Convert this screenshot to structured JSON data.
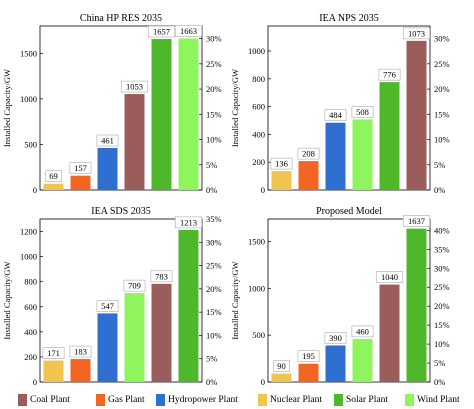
{
  "colors": {
    "Coal Plant": "#9b5c5c",
    "Gas Plant": "#f26522",
    "Hydropower Plant": "#2e6fd0",
    "Nuclear Plant": "#f1c451",
    "Solar Plant": "#4fb82a",
    "Wind Plant": "#8ef55c"
  },
  "legend": [
    {
      "label": "Coal Plant",
      "color": "#9b5c5c"
    },
    {
      "label": "Gas Plant",
      "color": "#f26522"
    },
    {
      "label": "Hydropower Plant",
      "color": "#2e6fd0"
    },
    {
      "label": "Nuclear Plant",
      "color": "#f1c451"
    },
    {
      "label": "Solar Plant",
      "color": "#4fb82a"
    },
    {
      "label": "Wind Plant",
      "color": "#8ef55c"
    }
  ],
  "chart_data": [
    {
      "type": "bar",
      "title": "China HP RES 2035",
      "ylabel": "Installed Capacity/GW",
      "ylim": [
        0,
        1800
      ],
      "yticks": [
        0,
        500,
        1000,
        1500
      ],
      "y2lim": [
        0,
        32.5
      ],
      "y2ticks": [
        "0%",
        "5%",
        "10%",
        "15%",
        "20%",
        "25%",
        "30%"
      ],
      "categories": [
        "Nuclear Plant",
        "Gas Plant",
        "Hydropower Plant",
        "Coal Plant",
        "Solar Plant",
        "Wind Plant"
      ],
      "values": [
        69,
        157,
        461,
        1053,
        1657,
        1663
      ]
    },
    {
      "type": "bar",
      "title": "IEA NPS 2035",
      "ylabel": "Installed Capacity/GW",
      "ylim": [
        0,
        1180
      ],
      "yticks": [
        0,
        200,
        400,
        600,
        800,
        1000
      ],
      "y2lim": [
        0,
        32.5
      ],
      "y2ticks": [
        "0%",
        "5%",
        "10%",
        "15%",
        "20%",
        "25%",
        "30%"
      ],
      "categories": [
        "Nuclear Plant",
        "Gas Plant",
        "Hydropower Plant",
        "Wind Plant",
        "Solar Plant",
        "Coal Plant"
      ],
      "values": [
        136,
        208,
        484,
        508,
        776,
        1073
      ]
    },
    {
      "type": "bar",
      "title": "IEA SDS 2035",
      "ylabel": "Installed Capacity/GW",
      "ylim": [
        0,
        1300
      ],
      "yticks": [
        0,
        200,
        400,
        600,
        800,
        1000,
        1200
      ],
      "y2lim": [
        0,
        35
      ],
      "y2ticks": [
        "0%",
        "5%",
        "10%",
        "15%",
        "20%",
        "25%",
        "30%",
        "35%"
      ],
      "categories": [
        "Nuclear Plant",
        "Gas Plant",
        "Hydropower Plant",
        "Wind Plant",
        "Coal Plant",
        "Solar Plant"
      ],
      "values": [
        171,
        183,
        547,
        709,
        783,
        1213
      ]
    },
    {
      "type": "bar",
      "title": "Proposed Model",
      "ylabel": "Installed Capacity/GW",
      "ylim": [
        0,
        1740
      ],
      "yticks": [
        0,
        500,
        1000,
        1500
      ],
      "y2lim": [
        0,
        43
      ],
      "y2ticks": [
        "0%",
        "5%",
        "10%",
        "15%",
        "20%",
        "25%",
        "30%",
        "35%",
        "40%"
      ],
      "categories": [
        "Nuclear Plant",
        "Gas Plant",
        "Hydropower Plant",
        "Wind Plant",
        "Coal Plant",
        "Solar Plant"
      ],
      "values": [
        90,
        195,
        390,
        460,
        1040,
        1637
      ]
    }
  ]
}
